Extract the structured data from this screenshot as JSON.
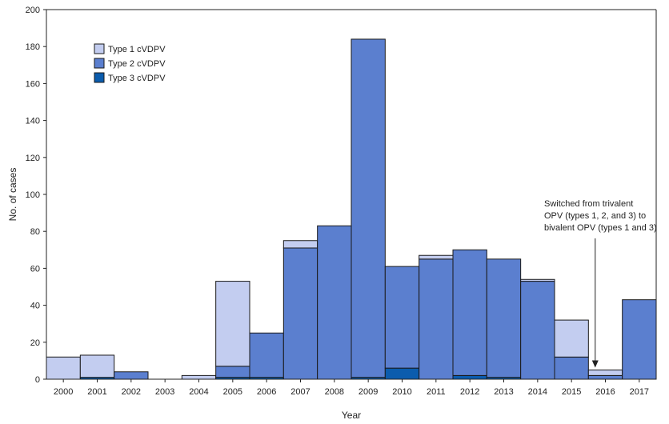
{
  "chart_data": {
    "type": "bar",
    "stacked": true,
    "title": "",
    "xlabel": "Year",
    "ylabel": "No. of cases",
    "ylim": [
      0,
      200
    ],
    "yticks": [
      0,
      20,
      40,
      60,
      80,
      100,
      120,
      140,
      160,
      180,
      200
    ],
    "grid": false,
    "legend_position": "top-left",
    "categories": [
      "2000",
      "2001",
      "2002",
      "2003",
      "2004",
      "2005",
      "2006",
      "2007",
      "2008",
      "2009",
      "2010",
      "2011",
      "2012",
      "2013",
      "2014",
      "2015",
      "2016",
      "2017"
    ],
    "series": [
      {
        "name": "Type 3 cVDPV",
        "color": "#0b5cad",
        "values": [
          0,
          1,
          0,
          0,
          0,
          1,
          1,
          0,
          0,
          1,
          6,
          0,
          2,
          1,
          0,
          0,
          0,
          0
        ]
      },
      {
        "name": "Type 2 cVDPV",
        "color": "#5b7fcf",
        "values": [
          0,
          0,
          4,
          0,
          0,
          6,
          24,
          71,
          83,
          183,
          55,
          65,
          68,
          64,
          53,
          12,
          2,
          43
        ]
      },
      {
        "name": "Type 1 cVDPV",
        "color": "#c3cdf0",
        "values": [
          12,
          12,
          0,
          0,
          2,
          46,
          0,
          4,
          0,
          0,
          0,
          2,
          0,
          0,
          1,
          20,
          3,
          0
        ]
      }
    ],
    "legend_order": [
      "Type 1 cVDPV",
      "Type 2 cVDPV",
      "Type 3 cVDPV"
    ],
    "annotation": {
      "lines": [
        "Switched from trivalent",
        "OPV (types 1, 2, and 3) to",
        "bivalent OPV (types 1 and 3)"
      ],
      "x": 16.2,
      "arrow_to_y": 5
    }
  }
}
